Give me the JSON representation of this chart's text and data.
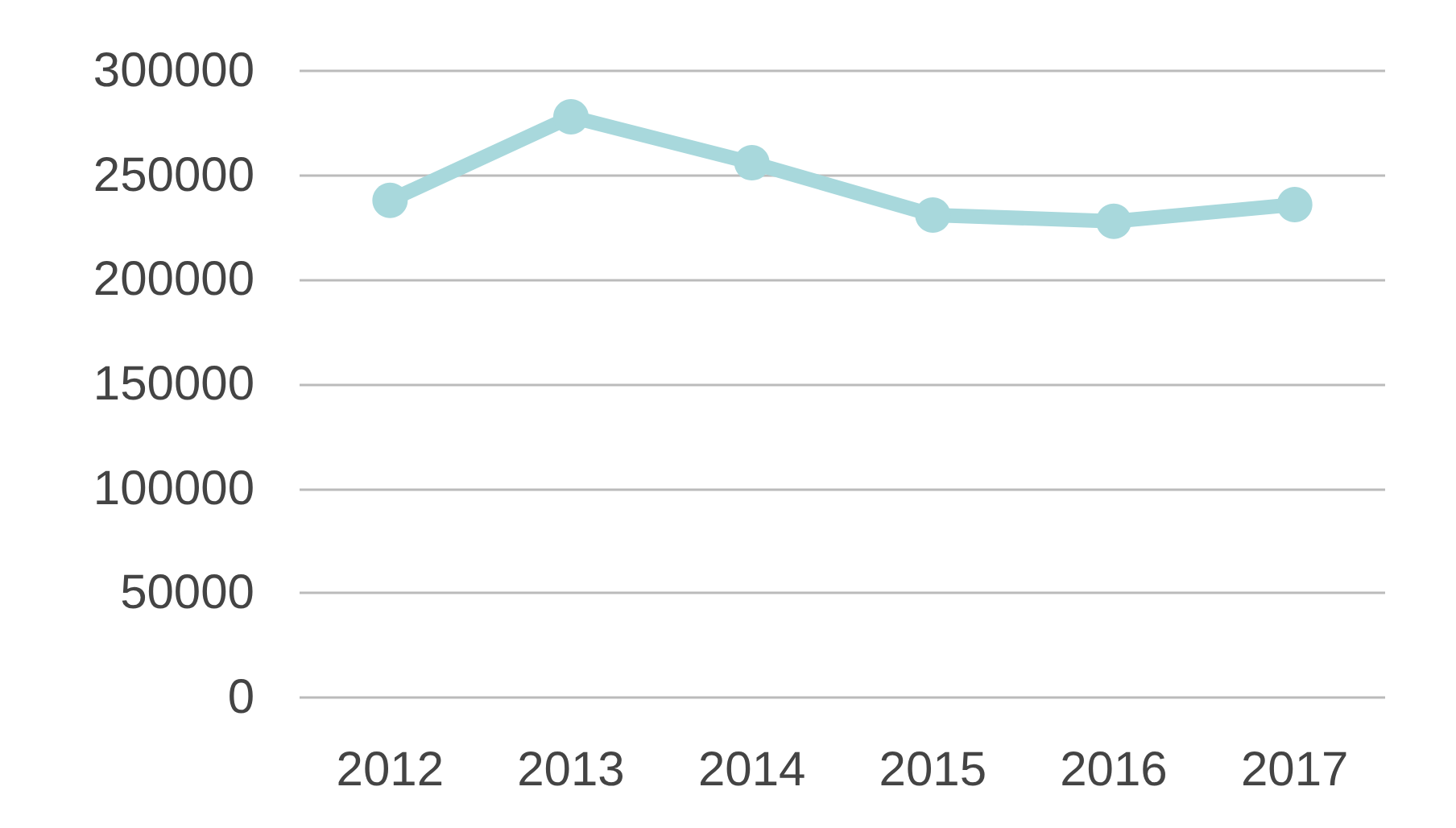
{
  "chart_data": {
    "type": "line",
    "categories": [
      "2012",
      "2013",
      "2014",
      "2015",
      "2016",
      "2017"
    ],
    "series": [
      {
        "color": "#a8d8dc",
        "values": [
          238000,
          278000,
          256000,
          231000,
          228000,
          236000
        ]
      }
    ],
    "ylim": [
      0,
      300000
    ],
    "yticks": [
      0,
      50000,
      100000,
      150000,
      200000,
      250000,
      300000
    ],
    "grid": "y",
    "marker": "circle",
    "line_style": "solid"
  }
}
